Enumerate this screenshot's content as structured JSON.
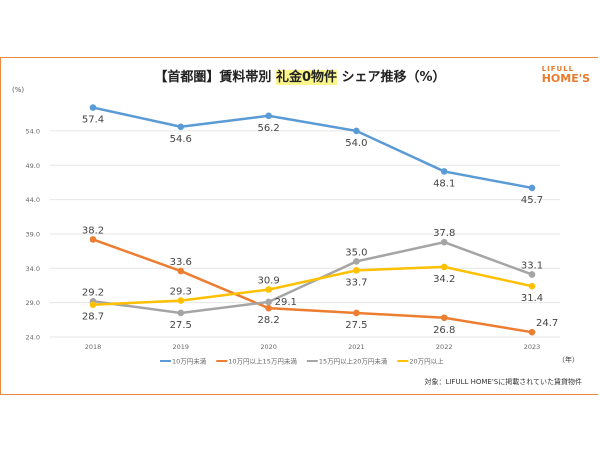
{
  "title": {
    "prefix": "【首都圏】賃料帯別 ",
    "highlight": "礼金0物件",
    "suffix": " シェア推移（%）"
  },
  "logo": {
    "top": "LIFULL",
    "bottom": "HOME'S"
  },
  "colors": {
    "frame": "#e8893f",
    "highlight": "#fbf68a"
  },
  "source": "対象：LIFULL HOME'Sに掲載されていた賃貸物件",
  "chart_data": {
    "type": "line",
    "title": "【首都圏】賃料帯別 礼金0物件 シェア推移（%）",
    "ylabel": "(%)",
    "xlabel": "（年）",
    "x": [
      "2018",
      "2019",
      "2020",
      "2021",
      "2022",
      "2023"
    ],
    "ylim": [
      24,
      58
    ],
    "yticks": [
      "24.0",
      "29.0",
      "34.0",
      "39.0",
      "44.0",
      "49.0",
      "54.0"
    ],
    "grid": true,
    "legend": "bottom",
    "series": [
      {
        "name": "10万円未満",
        "color": "#5b9bd5",
        "values": [
          57.4,
          54.6,
          56.2,
          54.0,
          48.1,
          45.7
        ],
        "label_pos": [
          "below",
          "below",
          "below",
          "below",
          "below",
          "below"
        ]
      },
      {
        "name": "10万円以上15万円未満",
        "color": "#ed7d31",
        "values": [
          38.2,
          33.6,
          28.2,
          27.5,
          26.8,
          24.7
        ],
        "label_pos": [
          "above",
          "above",
          "below",
          "below",
          "below",
          "below"
        ]
      },
      {
        "name": "15万円以上20万円未満",
        "color": "#a5a5a5",
        "values": [
          29.2,
          27.5,
          29.1,
          35.0,
          37.8,
          33.1
        ],
        "label_pos": [
          "above",
          "below",
          "right",
          "above",
          "above",
          "above"
        ]
      },
      {
        "name": "20万円以上",
        "color": "#ffc000",
        "values": [
          28.7,
          29.3,
          30.9,
          33.7,
          34.2,
          31.4
        ],
        "label_pos": [
          "below",
          "above",
          "above",
          "below",
          "below",
          "below"
        ]
      }
    ]
  }
}
